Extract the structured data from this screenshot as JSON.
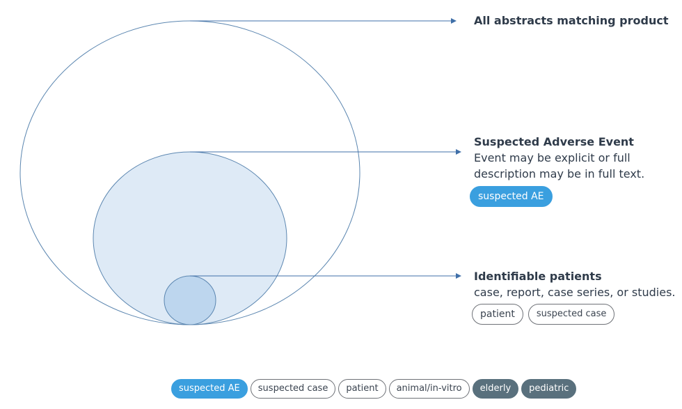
{
  "labels": {
    "all": {
      "title": "All abstracts matching product"
    },
    "suspected": {
      "title": "Suspected Adverse Event",
      "desc_line1": "Event may be explicit or full",
      "desc_line2": "description may be in full text.",
      "tags": [
        "suspected AE"
      ]
    },
    "identifiable": {
      "title": "Identifiable patients",
      "desc_line1": "case, report, case series, or studies.",
      "tags": [
        "patient",
        "suspected case"
      ]
    }
  },
  "legend": {
    "tags": [
      {
        "label": "suspected AE",
        "style": "blue"
      },
      {
        "label": "suspected case",
        "style": "outline"
      },
      {
        "label": "patient",
        "style": "outline"
      },
      {
        "label": "animal/in-vitro",
        "style": "outline"
      },
      {
        "label": "elderly",
        "style": "dark"
      },
      {
        "label": "pediatric",
        "style": "dark"
      }
    ]
  },
  "colors": {
    "outline_stroke": "#5b86b0",
    "middle_fill": "#deeaf6",
    "inner_fill": "#bdd6ee",
    "arrow": "#3f6fa8",
    "pill_blue": "#3a9fdf",
    "pill_dark": "#59707d"
  }
}
